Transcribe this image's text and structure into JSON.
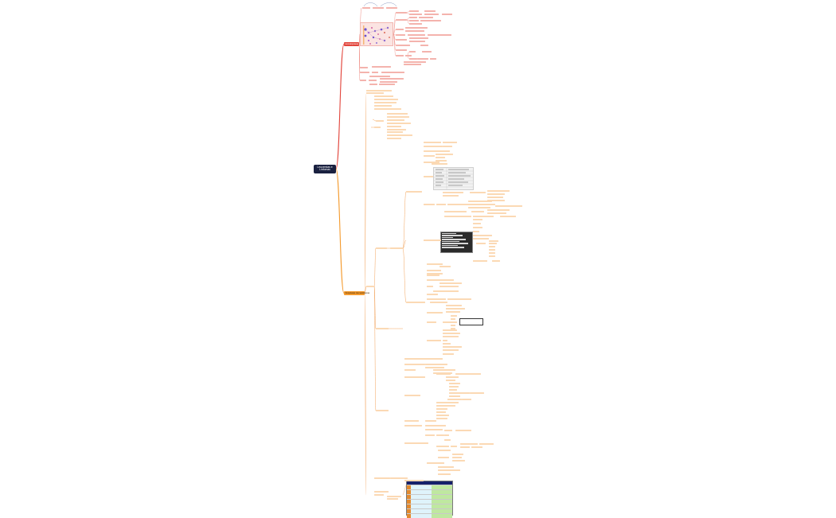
{
  "map": {
    "root_label": "Leucemias e Linfomas",
    "colors": {
      "root": "#1a2140",
      "branch_red": "#e2453c",
      "branch_orange": "#f49a2d",
      "connector": "#f2a25a",
      "node_fill": "#fbd9b4",
      "node_fill_red": "#f4b3ad"
    },
    "main_branches": [
      {
        "label": "Hematopoiese",
        "style": "red"
      },
      {
        "label": "Neoplasias Hematológicas",
        "style": "orange"
      }
    ],
    "embedded_images": [
      {
        "kind": "hematopoiesis-diagram",
        "name": "hematopoiesis-image"
      },
      {
        "kind": "data-grid",
        "name": "lab-values-image"
      },
      {
        "kind": "code-listing",
        "name": "classification-listing-image"
      },
      {
        "kind": "comparison-table",
        "name": "comparison-table-image"
      }
    ]
  }
}
